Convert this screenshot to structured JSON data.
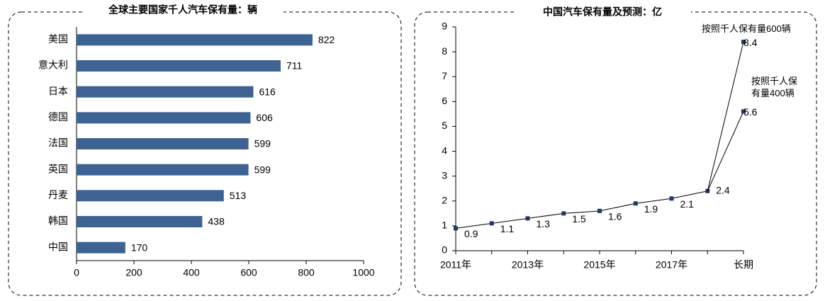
{
  "chart_data": [
    {
      "type": "bar",
      "orientation": "horizontal",
      "title": "全球主要国家千人汽车保有量：辆",
      "categories": [
        "美国",
        "意大利",
        "日本",
        "德国",
        "法国",
        "英国",
        "丹麦",
        "韩国",
        "中国"
      ],
      "values": [
        822,
        711,
        616,
        606,
        599,
        599,
        513,
        438,
        170
      ],
      "color": "#3e6392",
      "xlim": [
        0,
        1000
      ],
      "xticks": [
        0,
        200,
        400,
        600,
        800,
        1000
      ]
    },
    {
      "type": "line",
      "title": "中国汽车保有量及预测：亿",
      "categories": [
        "2011年",
        null,
        "2013年",
        null,
        "2015年",
        null,
        "2017年",
        null,
        "长期"
      ],
      "series": [
        {
          "color": "#000000",
          "values": [
            0.9,
            1.1,
            1.3,
            1.5,
            1.6,
            1.9,
            2.1,
            2.4,
            null
          ]
        },
        {
          "name": "按照千人保有量600辆",
          "color": "#000000",
          "values": [
            null,
            null,
            null,
            null,
            null,
            null,
            null,
            null,
            8.4
          ]
        },
        {
          "name": "按照千人保有量400辆",
          "color": "#000000",
          "values": [
            null,
            null,
            null,
            null,
            null,
            null,
            null,
            null,
            5.6
          ]
        }
      ],
      "marker_color": "#1f3864",
      "ylim": [
        0,
        9
      ],
      "yticks": [
        0,
        1,
        2,
        3,
        4,
        5,
        6,
        7,
        8,
        9
      ]
    }
  ]
}
